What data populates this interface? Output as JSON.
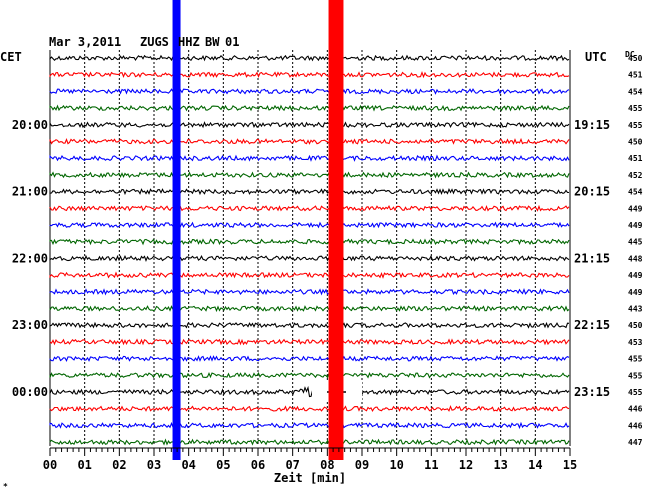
{
  "header": {
    "date": "Mar 3,2011",
    "station": "ZUGS",
    "channel": "HHZ",
    "network": "BW",
    "location": "01"
  },
  "left_label": "CET",
  "right_label": "UTC",
  "dc_label": "DC",
  "chart_data": {
    "type": "line",
    "xlabel": "Zeit [min]",
    "xlim": [
      0,
      15
    ],
    "x_ticks": [
      "00",
      "01",
      "02",
      "03",
      "04",
      "05",
      "06",
      "07",
      "08",
      "09",
      "10",
      "11",
      "12",
      "13",
      "14",
      "15"
    ],
    "left_time_labels": [
      {
        "trace": 4,
        "text": "20:00"
      },
      {
        "trace": 8,
        "text": "21:00"
      },
      {
        "trace": 12,
        "text": "22:00"
      },
      {
        "trace": 16,
        "text": "23:00"
      },
      {
        "trace": 20,
        "text": "00:00"
      }
    ],
    "right_time_labels": [
      {
        "trace": 4,
        "text": "19:15"
      },
      {
        "trace": 8,
        "text": "20:15"
      },
      {
        "trace": 12,
        "text": "21:15"
      },
      {
        "trace": 16,
        "text": "22:15"
      },
      {
        "trace": 20,
        "text": "23:15"
      }
    ],
    "trace_colors": [
      "#000000",
      "#ff0000",
      "#0000ff",
      "#006600"
    ],
    "dc_offsets": [
      450,
      451,
      454,
      455,
      455,
      450,
      451,
      452,
      454,
      449,
      449,
      445,
      448,
      449,
      449,
      443,
      450,
      453,
      455,
      455,
      455,
      446,
      446,
      447
    ],
    "markers": [
      {
        "color": "#0000ff",
        "minute": 3.65
      },
      {
        "color": "#ff0000",
        "minute": 8.15
      },
      {
        "color": "#ff0000",
        "minute": 8.35
      }
    ],
    "grid": true
  }
}
